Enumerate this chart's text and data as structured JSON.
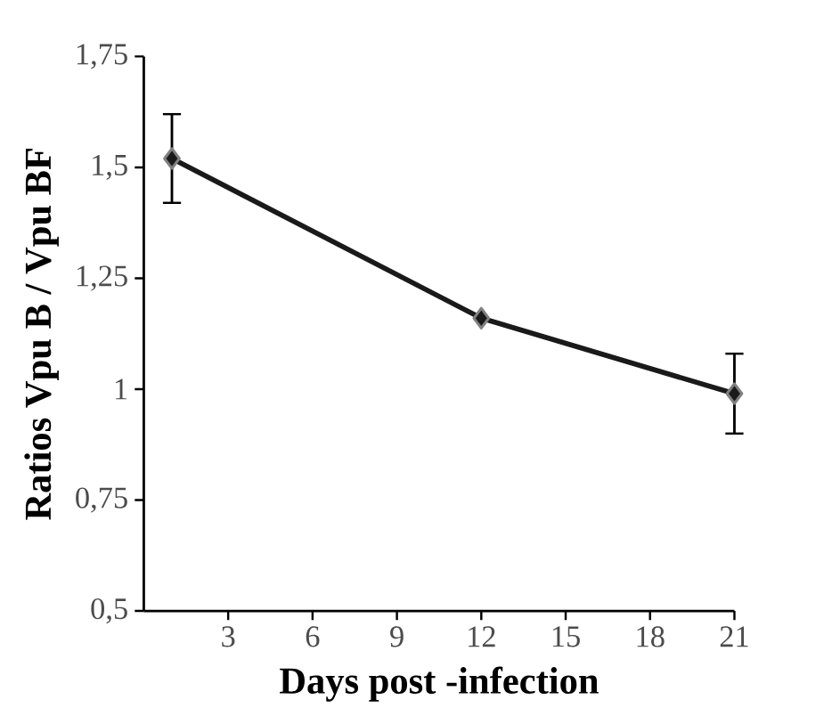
{
  "chart_data": {
    "type": "line",
    "xlabel": "Days post -infection",
    "ylabel": "Ratios Vpu B / Vpu BF",
    "x": [
      1,
      12,
      21
    ],
    "series": [
      {
        "color": "#1a1a1a",
        "values": [
          1.52,
          1.16,
          0.99
        ],
        "errors": [
          0.1,
          null,
          0.09
        ]
      }
    ],
    "xlim": [
      0,
      21
    ],
    "xticks": [
      3,
      6,
      9,
      12,
      15,
      18,
      21
    ],
    "ylim": [
      0.5,
      1.75
    ],
    "yticks": [
      {
        "value": 0.5,
        "label": "0,5"
      },
      {
        "value": 0.75,
        "label": "0,75"
      },
      {
        "value": 1,
        "label": "1"
      },
      {
        "value": 1.25,
        "label": "1,25"
      },
      {
        "value": 1.5,
        "label": "1,5"
      },
      {
        "value": 1.75,
        "label": "1,75"
      }
    ],
    "marker": "diamond",
    "line_style": "solid",
    "grid": false
  }
}
